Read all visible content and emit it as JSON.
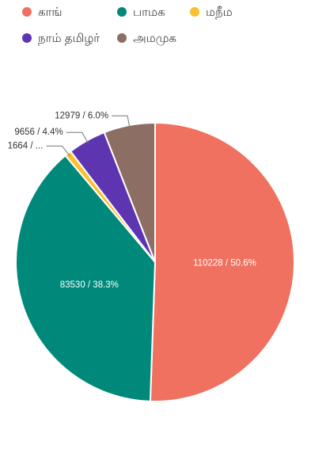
{
  "chart_data": {
    "type": "pie",
    "categories": [
      "காங்",
      "பாமக",
      "மநீம",
      "நாம் தமிழர்",
      "அமமுக"
    ],
    "values": [
      110228,
      83530,
      1664,
      9656,
      12979
    ],
    "value_labels": [
      "110228 / 50.6%",
      "83530 / 38.3%",
      "1664 / ...",
      "9656 / 4.4%",
      "12979 / 6.0%"
    ],
    "colors": [
      "#f07160",
      "#00897b",
      "#fbc02d",
      "#5e35b1",
      "#8d6e63"
    ],
    "legend": "top"
  }
}
